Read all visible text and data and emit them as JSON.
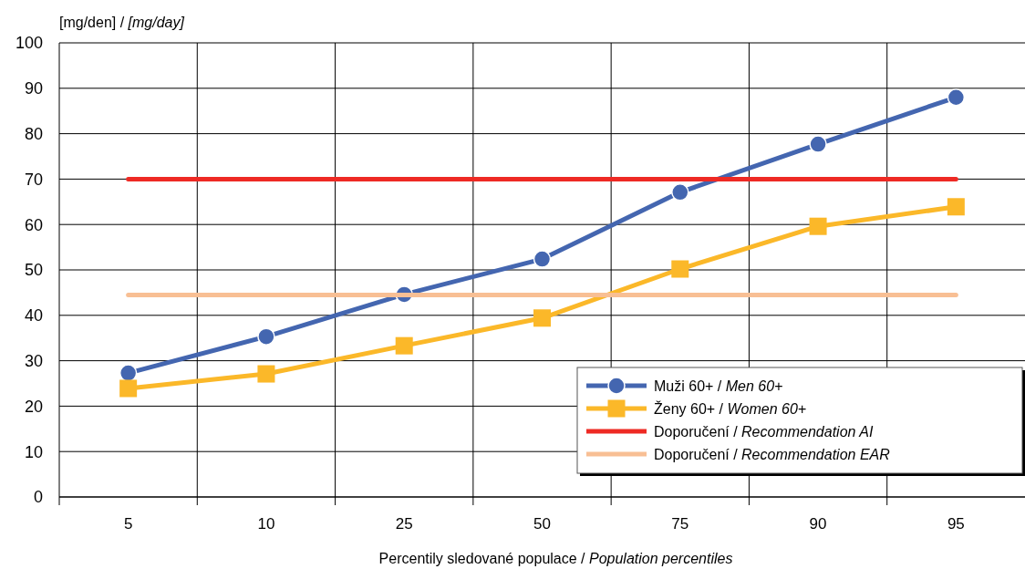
{
  "chart_data": {
    "type": "line",
    "xlabel": "Percentily sledované populace / Population percentiles",
    "ylabel": "[mg/den] / [mg/day]",
    "categories": [
      "5",
      "10",
      "25",
      "50",
      "75",
      "90",
      "95"
    ],
    "ylim": [
      0,
      100
    ],
    "yticks": [
      0,
      10,
      20,
      30,
      40,
      50,
      60,
      70,
      80,
      90,
      100
    ],
    "grid": true,
    "legend": "bottom right",
    "series": [
      {
        "name": "Muži 60+ / Men 60+",
        "color": "#4466b0",
        "marker": "circle",
        "values": [
          27.3,
          35.3,
          44.6,
          52.4,
          67.1,
          77.7,
          88.0
        ]
      },
      {
        "name": "Ženy 60+ / Women 60+",
        "color": "#fbb829",
        "marker": "square",
        "values": [
          23.9,
          27.1,
          33.3,
          39.4,
          50.2,
          59.6,
          63.9
        ]
      },
      {
        "name": "Doporučení / Recommendation AI",
        "color": "#ee2a24",
        "marker": "none",
        "values": [
          70,
          70,
          70,
          70,
          70,
          70,
          70
        ]
      },
      {
        "name": "Doporučení / Recommendation EAR",
        "color": "#f8bf94",
        "marker": "none",
        "values": [
          44.5,
          44.5,
          44.5,
          44.5,
          44.5,
          44.5,
          44.5
        ]
      }
    ]
  }
}
